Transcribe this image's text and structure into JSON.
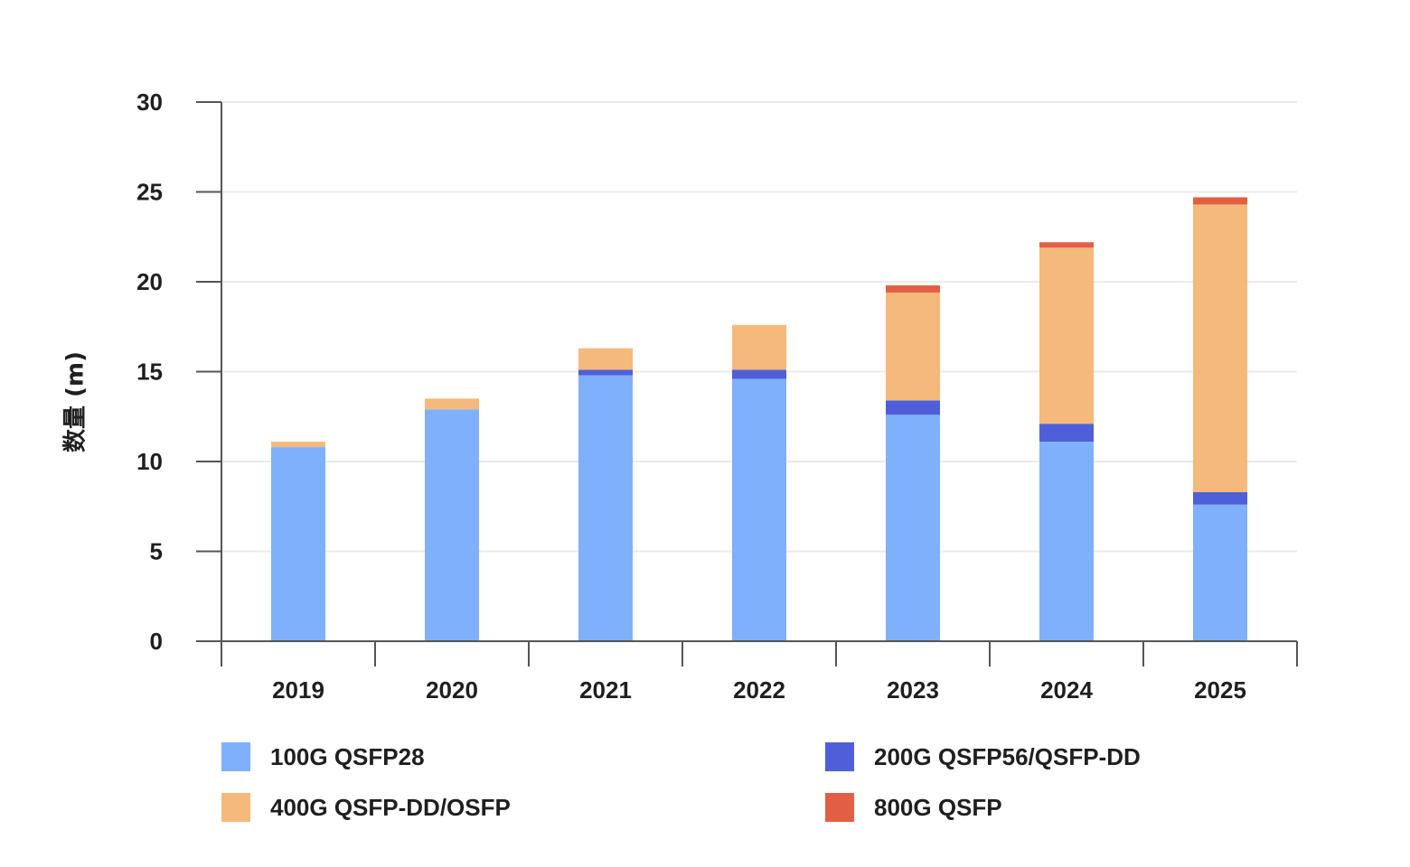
{
  "chart_data": {
    "type": "bar",
    "stacked": true,
    "categories": [
      "2019",
      "2020",
      "2021",
      "2022",
      "2023",
      "2024",
      "2025"
    ],
    "ylabel": "数量 (m)",
    "xlabel": "",
    "ylim": [
      0,
      30
    ],
    "yticks": [
      "0",
      "5",
      "10",
      "15",
      "20",
      "25",
      "30"
    ],
    "grid": true,
    "legend_position": "bottom",
    "series": [
      {
        "name": "100G QSFP28",
        "color": "#7fb0fb",
        "values": [
          10.8,
          12.9,
          14.8,
          14.6,
          12.6,
          11.1,
          7.6
        ]
      },
      {
        "name": "200G QSFP56/QSFP-DD",
        "color": "#4f5fd7",
        "values": [
          0.0,
          0.0,
          0.3,
          0.5,
          0.8,
          1.0,
          0.7
        ]
      },
      {
        "name": "400G QSFP-DD/OSFP",
        "color": "#f4b97b",
        "values": [
          0.3,
          0.6,
          1.2,
          2.5,
          6.0,
          9.8,
          16.0
        ]
      },
      {
        "name": "800G QSFP",
        "color": "#e25f45",
        "values": [
          0.0,
          0.0,
          0.0,
          0.0,
          0.4,
          0.3,
          0.4
        ]
      }
    ]
  }
}
